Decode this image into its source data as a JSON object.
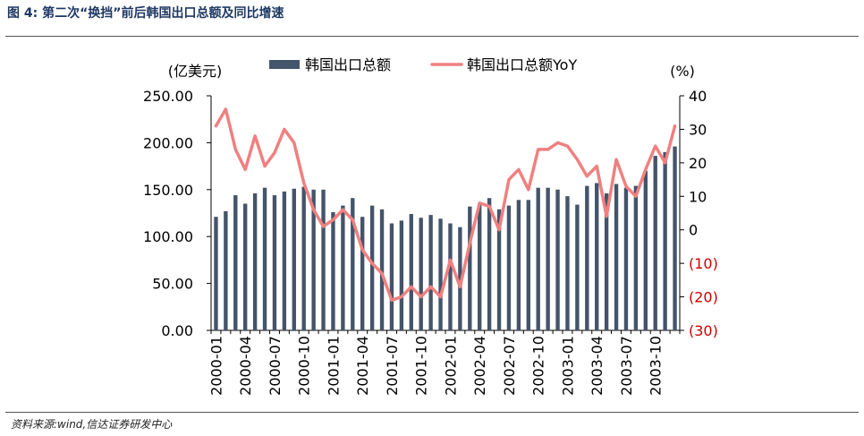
{
  "header": {
    "title": "图 4:  第二次“换挡”前后韩国出口总额及同比增速"
  },
  "footer": {
    "source": "资料来源:wind,信达证券研发中心"
  },
  "colors": {
    "bar": "#44546a",
    "line": "#f08080",
    "axis": "#000000",
    "negative_tick": "#cc0000"
  },
  "chart_data": {
    "type": "bar",
    "title": "",
    "y_unit_left": "(亿美元)",
    "y_unit_right": "(%)",
    "legend": [
      {
        "name": "韩国出口总额",
        "kind": "bar"
      },
      {
        "name": "韩国出口总额YoY",
        "kind": "line"
      }
    ],
    "legend_position": "top",
    "ylim_left": [
      0,
      250
    ],
    "ylim_right": [
      -30,
      40
    ],
    "y_ticks_left": [
      "0.00",
      "50.00",
      "100.00",
      "150.00",
      "200.00",
      "250.00"
    ],
    "y_ticks_right": [
      "(30)",
      "(20)",
      "(10)",
      "0",
      "10",
      "20",
      "30",
      "40"
    ],
    "x_tick_labels": [
      "2000-01",
      "2000-04",
      "2000-07",
      "2000-10",
      "2001-01",
      "2001-04",
      "2001-07",
      "2001-10",
      "2002-01",
      "2002-04",
      "2002-07",
      "2002-10",
      "2003-01",
      "2003-04",
      "2003-07",
      "2003-10"
    ],
    "x_tick_every": 3,
    "categories": [
      "2000-01",
      "2000-02",
      "2000-03",
      "2000-04",
      "2000-05",
      "2000-06",
      "2000-07",
      "2000-08",
      "2000-09",
      "2000-10",
      "2000-11",
      "2000-12",
      "2001-01",
      "2001-02",
      "2001-03",
      "2001-04",
      "2001-05",
      "2001-06",
      "2001-07",
      "2001-08",
      "2001-09",
      "2001-10",
      "2001-11",
      "2001-12",
      "2002-01",
      "2002-02",
      "2002-03",
      "2002-04",
      "2002-05",
      "2002-06",
      "2002-07",
      "2002-08",
      "2002-09",
      "2002-10",
      "2002-11",
      "2002-12",
      "2003-01",
      "2003-02",
      "2003-03",
      "2003-04",
      "2003-05",
      "2003-06",
      "2003-07",
      "2003-08",
      "2003-09",
      "2003-10",
      "2003-11",
      "2003-12"
    ],
    "series": [
      {
        "name": "韩国出口总额",
        "axis": "left",
        "values": [
          121,
          127,
          144,
          135,
          146,
          152,
          144,
          148,
          151,
          153,
          150,
          150,
          126,
          133,
          141,
          121,
          133,
          129,
          114,
          117,
          124,
          120,
          123,
          119,
          114,
          110,
          132,
          134,
          141,
          129,
          133,
          139,
          139,
          152,
          152,
          150,
          143,
          134,
          154,
          157,
          146,
          156,
          152,
          154,
          170,
          186,
          190,
          196
        ]
      },
      {
        "name": "韩国出口总额YoY",
        "axis": "right",
        "values": [
          31,
          36,
          24,
          18,
          28,
          19,
          23,
          30,
          26,
          14,
          6,
          1,
          3,
          6,
          3,
          -6,
          -10,
          -13,
          -21,
          -20,
          -17,
          -20,
          -17,
          -20,
          -9,
          -17,
          -4,
          8,
          7,
          0,
          15,
          18,
          12,
          24,
          24,
          26,
          25,
          21,
          16,
          19,
          4,
          21,
          13,
          10,
          18,
          25,
          20,
          31
        ]
      }
    ]
  }
}
